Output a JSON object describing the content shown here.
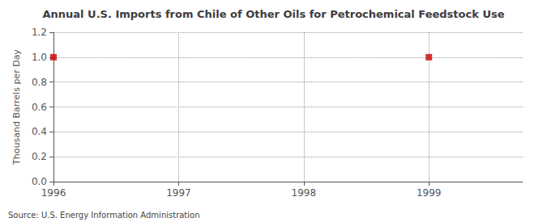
{
  "chart_data": {
    "type": "scatter",
    "title": "Annual U.S. Imports from Chile of Other Oils for Petrochemical Feedstock Use",
    "ylabel": "Thousand Barrels per Day",
    "annotations": [
      "Source: U.S. Energy Information Administration"
    ],
    "x": [
      1996,
      1999
    ],
    "values": [
      1.0,
      1.0
    ],
    "color": "#cc0000",
    "marker": "square",
    "xlim": [
      1996.0,
      1999.75
    ],
    "xticks": [
      1996,
      1997,
      1998,
      1999
    ],
    "ylim": [
      0.0,
      1.2
    ],
    "yticks": [
      {
        "value": 0,
        "label": "0.0"
      },
      0.2,
      0.4,
      0.6,
      0.8,
      {
        "value": 1,
        "label": "1.0"
      },
      1.2
    ],
    "grid": true
  }
}
